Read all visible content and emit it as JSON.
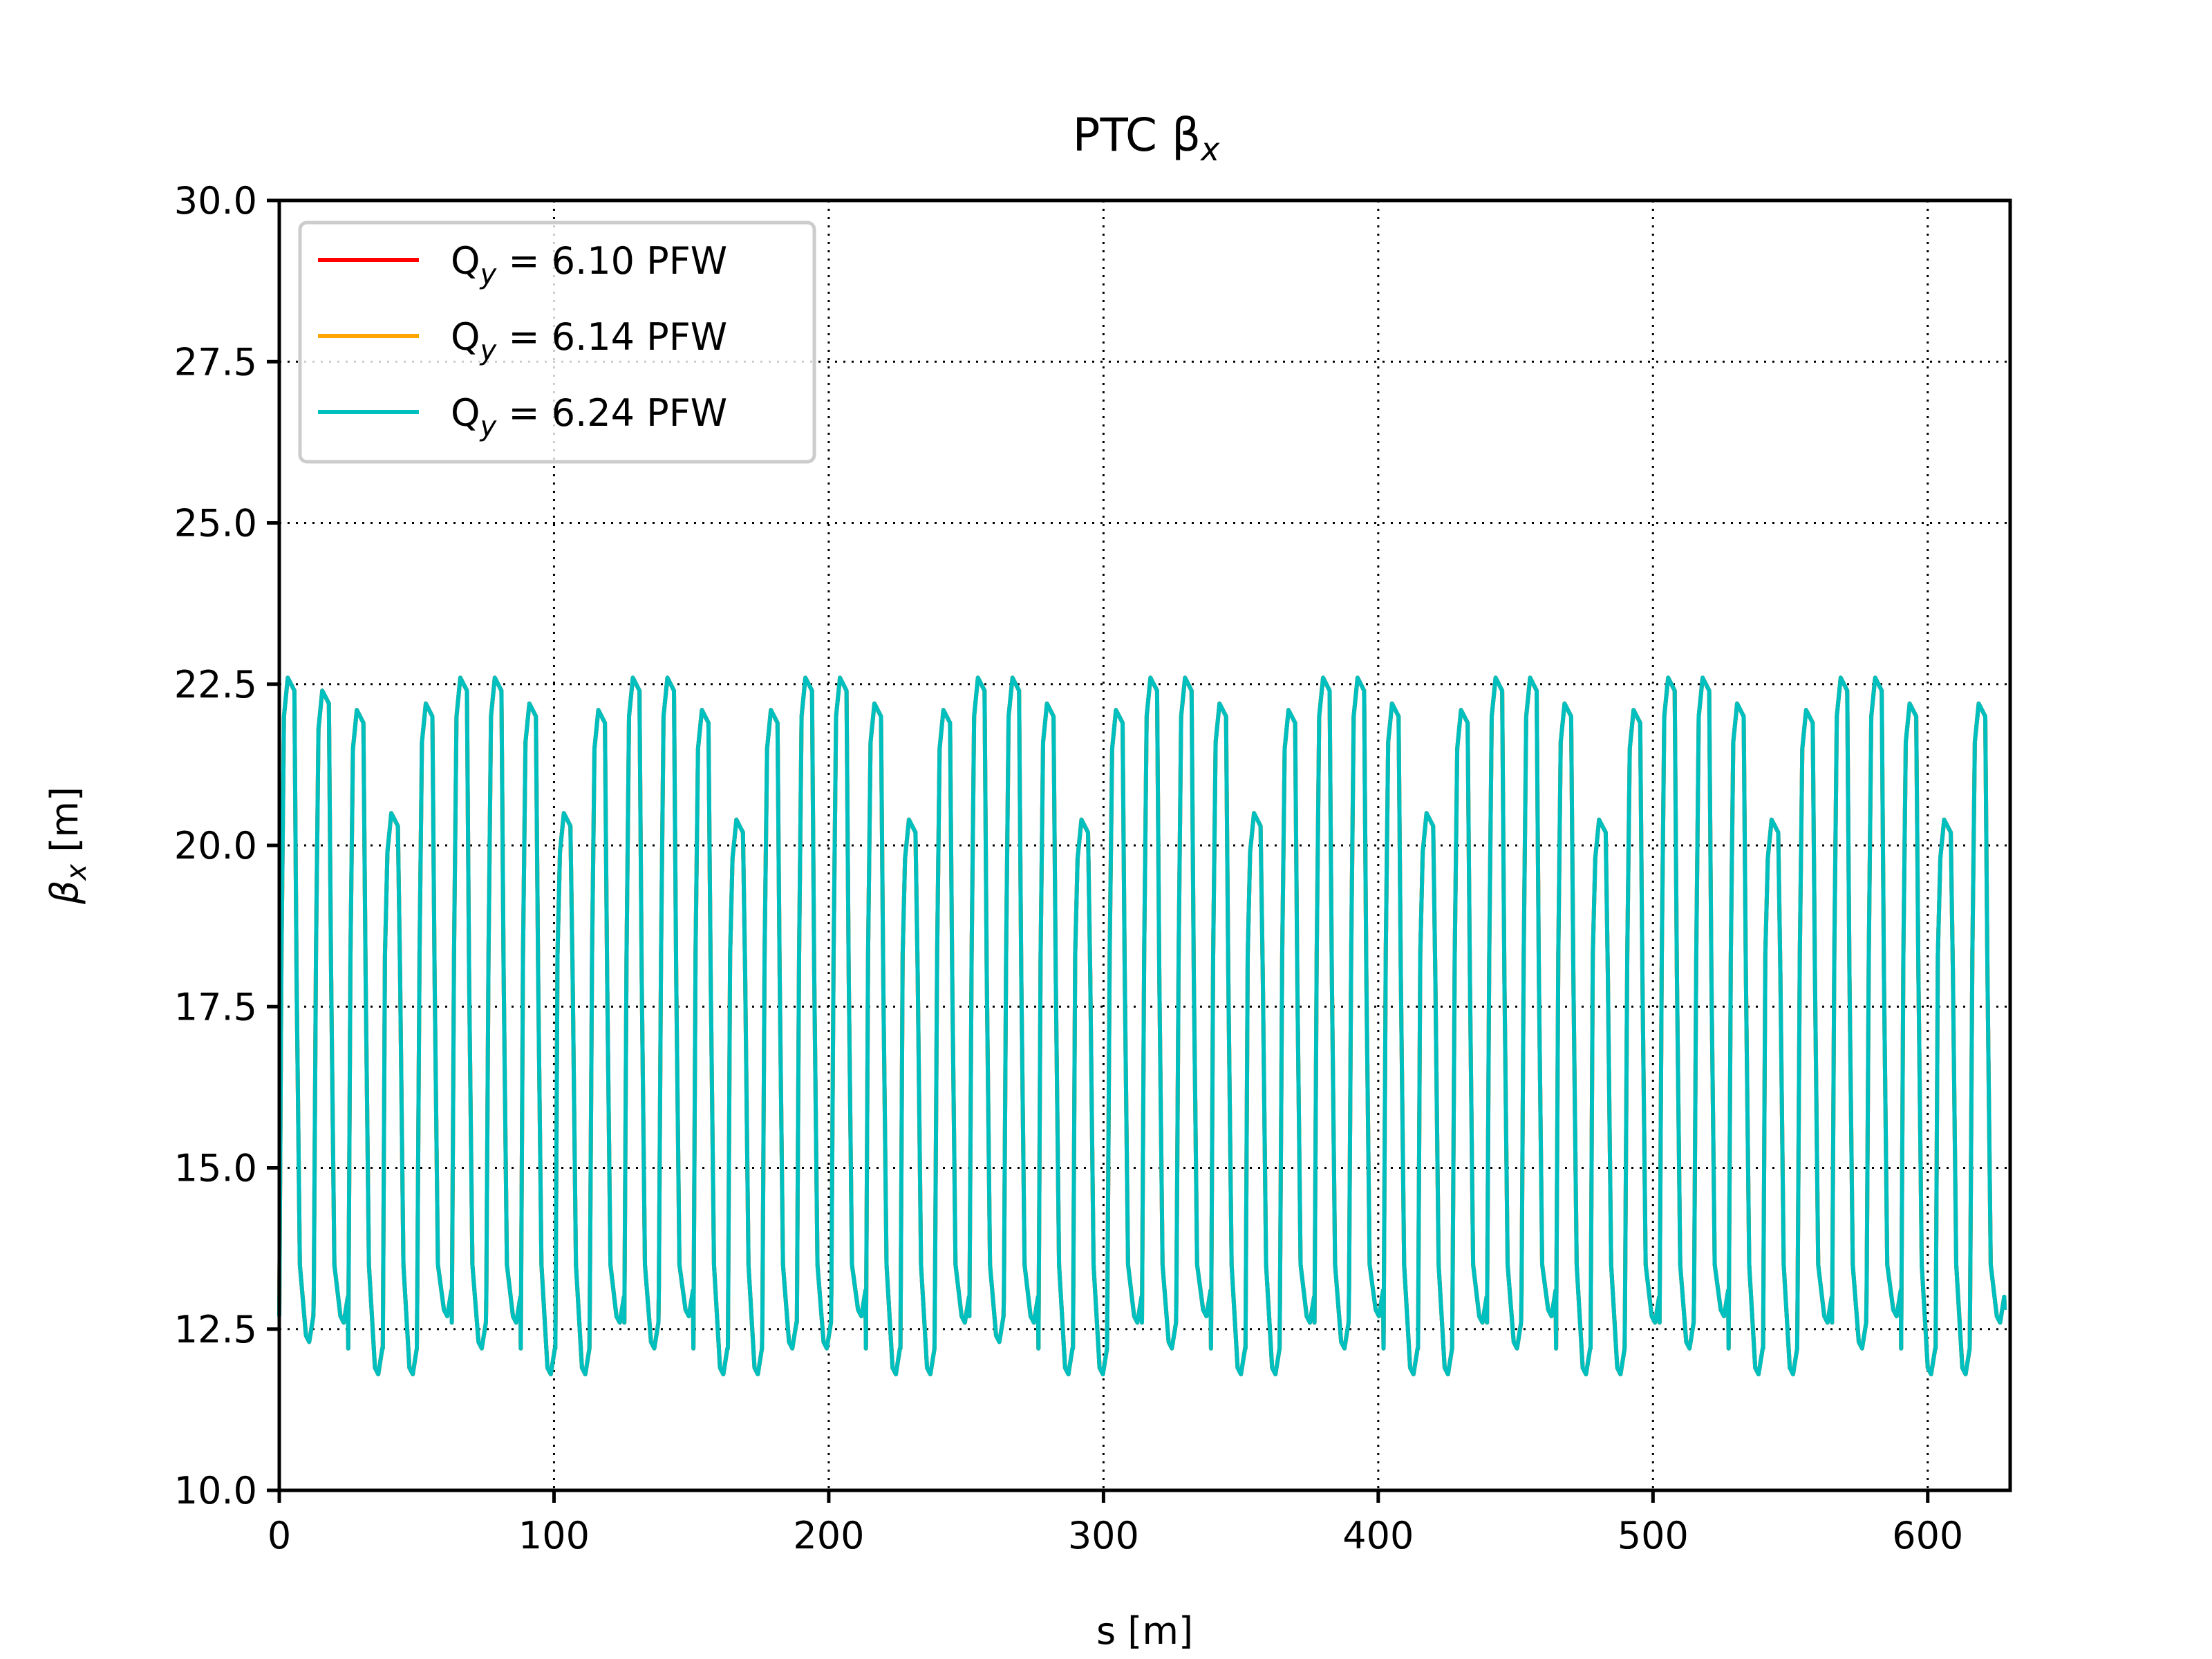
{
  "chart_data": {
    "type": "line",
    "title": "PTC β",
    "title_subscript": "x",
    "xlabel": "s [m]",
    "ylabel": "β",
    "ylabel_subscript": "x",
    "ylabel_unit": " [m]",
    "xlim": [
      0,
      630
    ],
    "ylim": [
      10,
      30
    ],
    "xticks": [
      0,
      100,
      200,
      300,
      400,
      500,
      600
    ],
    "xtick_labels": [
      "0",
      "100",
      "200",
      "300",
      "400",
      "500",
      "600"
    ],
    "yticks": [
      10,
      12.5,
      15,
      17.5,
      20,
      22.5,
      25,
      27.5,
      30
    ],
    "ytick_labels": [
      "10.0",
      "12.5",
      "15.0",
      "17.5",
      "20.0",
      "22.5",
      "25.0",
      "27.5",
      "30.0"
    ],
    "grid": true,
    "legend_position": "top-left",
    "series": [
      {
        "name": "Q",
        "name_sub": "y",
        "name_rest": " = 6.10 PFW",
        "color": "#ff0000"
      },
      {
        "name": "Q",
        "name_sub": "y",
        "name_rest": " = 6.14 PFW",
        "color": "#ffa500"
      },
      {
        "name": "Q",
        "name_sub": "y",
        "name_rest": " = 6.24 PFW",
        "color": "#00bfbf"
      }
    ],
    "beta_x_profile": {
      "s_start": 0,
      "s_end": 628,
      "cells": 50,
      "cell_length": 12.56,
      "s_offsets": [
        0,
        0.8,
        1.7,
        3.1,
        5.5,
        6.3,
        7.5,
        9.7,
        10.9,
        12.4
      ],
      "shape": [
        12.8,
        18.3,
        22.0,
        22.6,
        22.4,
        18.0,
        13.5,
        12.5,
        12.4,
        12.8
      ],
      "peak_values": [
        22.6,
        22.4,
        22.1,
        20.5,
        22.2,
        22.6,
        22.6,
        22.2,
        20.5,
        22.1,
        22.6,
        22.6,
        22.1,
        20.4,
        22.1,
        22.6,
        22.6,
        22.2,
        20.4,
        22.1,
        22.6,
        22.6,
        22.2,
        20.4,
        22.1,
        22.6,
        22.6,
        22.2,
        20.5,
        22.1,
        22.6,
        22.6,
        22.2,
        20.5,
        22.1,
        22.6,
        22.6,
        22.2,
        20.4,
        22.1,
        22.6,
        22.6,
        22.2,
        20.4,
        22.1,
        22.6,
        22.6,
        22.2,
        20.4,
        22.2
      ],
      "trough_values": [
        12.4,
        12.7,
        11.9,
        11.9,
        12.8,
        12.3,
        12.7,
        11.9,
        11.9,
        12.7,
        12.3,
        12.8,
        11.9,
        11.9,
        12.3,
        12.3,
        12.8,
        11.9,
        11.9,
        12.7,
        12.4,
        12.7,
        11.9,
        11.9,
        12.7,
        12.3,
        12.8,
        11.9,
        11.9,
        12.7,
        12.3,
        12.8,
        11.9,
        11.9,
        12.7,
        12.3,
        12.8,
        11.9,
        11.9,
        12.7,
        12.3,
        12.8,
        11.9,
        11.9,
        12.7,
        12.3,
        12.8,
        11.9,
        11.9,
        12.7
      ]
    }
  }
}
